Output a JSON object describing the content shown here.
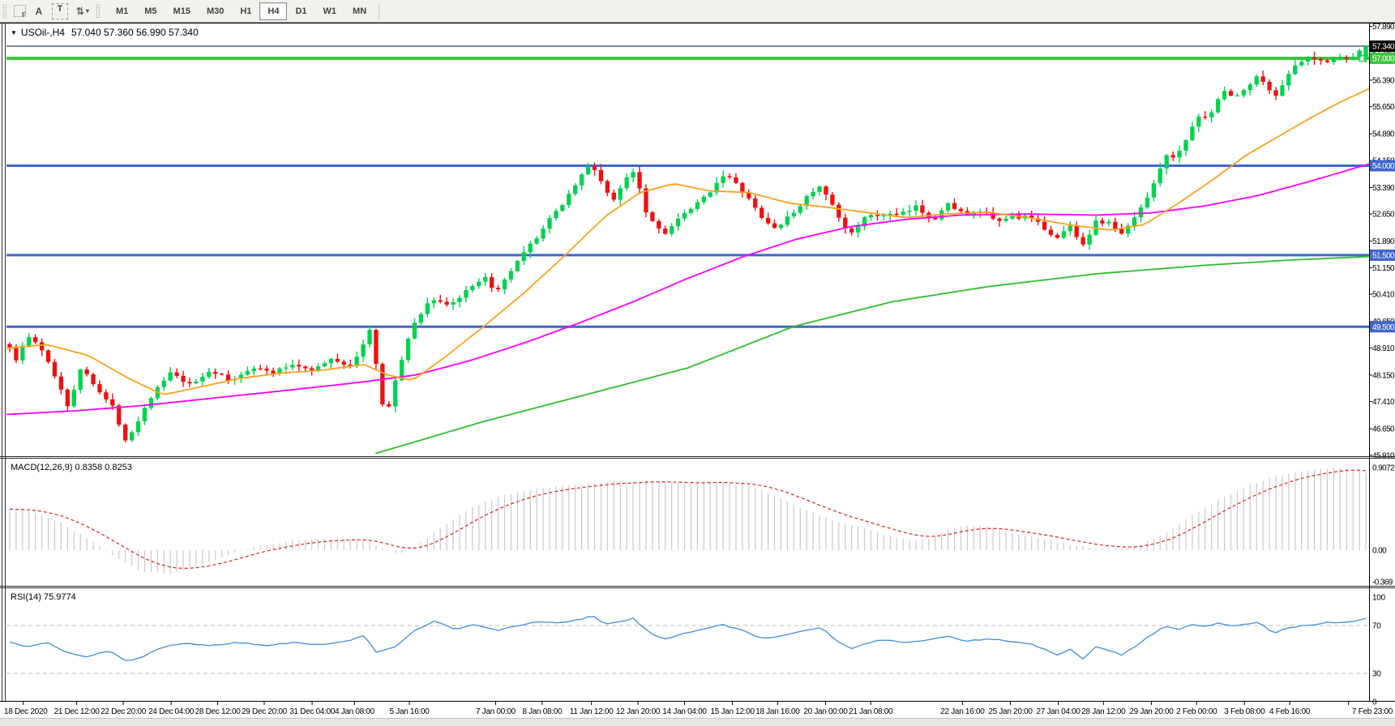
{
  "toolbar": {
    "icons": [
      {
        "name": "grid-f-icon",
        "glyph": "F"
      },
      {
        "name": "font-icon",
        "glyph": "A"
      },
      {
        "name": "text-label-icon",
        "glyph": "T"
      },
      {
        "name": "arrow-tools-icon",
        "glyph": "⇅"
      }
    ],
    "caret_glyph": "▾",
    "timeframes": [
      "M1",
      "M5",
      "M15",
      "M30",
      "H1",
      "H4",
      "D1",
      "W1",
      "MN"
    ],
    "active_timeframe": "H4"
  },
  "chart_header": {
    "window_menu_glyph": "▼",
    "symbol": "USOil-,H4",
    "ohlc": "57.040 57.360 56.990 57.340"
  },
  "indicators": {
    "macd_label": "MACD(12,26,9) 0.8358 0.8253",
    "rsi_label": "RSI(14) 75.9774"
  },
  "colors": {
    "bull": "#00d34f",
    "bear": "#ef1010",
    "ma_fast": "#ffa01e",
    "ma_mid": "#ff00ff",
    "ma_slow": "#2fbe2f",
    "hline_blue": "#4066cc",
    "hline_green": "#3dc53d",
    "last_price_line": "#7e8c99",
    "last_price_box": "#000000",
    "macd_hist": "#c9c9c9",
    "macd_signal": "#e02020",
    "rsi_line": "#3e8ede",
    "rsi_levels": "#bdbdbd",
    "panel_bg": "#ffffff",
    "border": "#3a3a3a"
  },
  "chart_data": {
    "type": "candlestick",
    "symbol": "USOil-",
    "timeframe": "H4",
    "title": "USOil-,H4 57.040 57.360 56.990 57.340",
    "ohlc_current": {
      "open": 57.04,
      "high": 57.36,
      "low": 56.99,
      "close": 57.34
    },
    "price_axis_ticks": [
      "57.890",
      "57.150",
      "56.390",
      "55.650",
      "54.890",
      "54.150",
      "53.390",
      "52.650",
      "51.890",
      "51.150",
      "50.410",
      "49.650",
      "48.910",
      "48.150",
      "47.410",
      "46.650",
      "45.910"
    ],
    "horizontal_lines": [
      {
        "price": 57.34,
        "label": "57.340",
        "style": "last-price"
      },
      {
        "price": 57.0,
        "label": "57.000",
        "style": "green-line"
      },
      {
        "price": 54.0,
        "label": "54.000",
        "style": "blue-line"
      },
      {
        "price": 51.5,
        "label": "51.500",
        "style": "blue-line"
      },
      {
        "price": 49.5,
        "label": "49.500",
        "style": "blue-line"
      }
    ],
    "candle_count": 212,
    "price_anchors": [
      [
        0.0,
        49.3
      ],
      [
        0.006,
        48.45
      ],
      [
        0.015,
        49.25
      ],
      [
        0.022,
        49.05
      ],
      [
        0.03,
        48.55
      ],
      [
        0.038,
        47.95
      ],
      [
        0.045,
        47.3
      ],
      [
        0.055,
        48.35
      ],
      [
        0.062,
        48.05
      ],
      [
        0.07,
        47.6
      ],
      [
        0.078,
        47.25
      ],
      [
        0.088,
        46.3
      ],
      [
        0.096,
        46.85
      ],
      [
        0.106,
        47.55
      ],
      [
        0.12,
        48.2
      ],
      [
        0.135,
        47.85
      ],
      [
        0.15,
        48.3
      ],
      [
        0.165,
        47.95
      ],
      [
        0.18,
        48.4
      ],
      [
        0.195,
        48.2
      ],
      [
        0.21,
        48.45
      ],
      [
        0.225,
        48.3
      ],
      [
        0.24,
        48.6
      ],
      [
        0.252,
        48.4
      ],
      [
        0.26,
        48.75
      ],
      [
        0.265,
        49.6
      ],
      [
        0.27,
        48.9
      ],
      [
        0.274,
        47.4
      ],
      [
        0.279,
        47.1
      ],
      [
        0.288,
        48.35
      ],
      [
        0.299,
        49.6
      ],
      [
        0.312,
        50.3
      ],
      [
        0.325,
        50.1
      ],
      [
        0.34,
        50.55
      ],
      [
        0.352,
        50.85
      ],
      [
        0.36,
        50.45
      ],
      [
        0.374,
        51.25
      ],
      [
        0.392,
        52.15
      ],
      [
        0.41,
        53.05
      ],
      [
        0.424,
        53.85
      ],
      [
        0.429,
        54.05
      ],
      [
        0.437,
        53.55
      ],
      [
        0.445,
        52.95
      ],
      [
        0.455,
        53.7
      ],
      [
        0.461,
        53.9
      ],
      [
        0.47,
        52.65
      ],
      [
        0.482,
        52.1
      ],
      [
        0.495,
        52.55
      ],
      [
        0.512,
        53.1
      ],
      [
        0.527,
        53.8
      ],
      [
        0.542,
        53.2
      ],
      [
        0.556,
        52.45
      ],
      [
        0.565,
        52.25
      ],
      [
        0.578,
        52.7
      ],
      [
        0.59,
        53.25
      ],
      [
        0.598,
        53.4
      ],
      [
        0.61,
        52.6
      ],
      [
        0.618,
        52.05
      ],
      [
        0.628,
        52.5
      ],
      [
        0.642,
        52.65
      ],
      [
        0.655,
        52.6
      ],
      [
        0.668,
        52.85
      ],
      [
        0.68,
        52.5
      ],
      [
        0.692,
        52.95
      ],
      [
        0.705,
        52.6
      ],
      [
        0.716,
        52.75
      ],
      [
        0.726,
        52.4
      ],
      [
        0.738,
        52.6
      ],
      [
        0.75,
        52.55
      ],
      [
        0.762,
        52.25
      ],
      [
        0.772,
        51.95
      ],
      [
        0.78,
        52.35
      ],
      [
        0.79,
        51.8
      ],
      [
        0.8,
        52.45
      ],
      [
        0.81,
        52.4
      ],
      [
        0.818,
        52.05
      ],
      [
        0.828,
        52.55
      ],
      [
        0.838,
        53.2
      ],
      [
        0.85,
        54.25
      ],
      [
        0.86,
        54.3
      ],
      [
        0.872,
        55.25
      ],
      [
        0.884,
        55.5
      ],
      [
        0.894,
        56.1
      ],
      [
        0.902,
        55.9
      ],
      [
        0.912,
        56.25
      ],
      [
        0.92,
        56.55
      ],
      [
        0.93,
        55.85
      ],
      [
        0.94,
        56.55
      ],
      [
        0.95,
        56.9
      ],
      [
        0.958,
        57.0
      ],
      [
        0.966,
        56.9
      ],
      [
        0.976,
        57.05
      ],
      [
        0.986,
        56.95
      ],
      [
        0.996,
        57.3
      ]
    ],
    "ma_fast_anchors": [
      [
        0.0,
        48.9
      ],
      [
        0.03,
        49.0
      ],
      [
        0.06,
        48.7
      ],
      [
        0.09,
        48.05
      ],
      [
        0.115,
        47.6
      ],
      [
        0.14,
        47.8
      ],
      [
        0.17,
        48.05
      ],
      [
        0.2,
        48.2
      ],
      [
        0.235,
        48.3
      ],
      [
        0.262,
        48.45
      ],
      [
        0.28,
        48.15
      ],
      [
        0.298,
        48.0
      ],
      [
        0.32,
        48.6
      ],
      [
        0.35,
        49.5
      ],
      [
        0.38,
        50.45
      ],
      [
        0.41,
        51.5
      ],
      [
        0.44,
        52.6
      ],
      [
        0.465,
        53.25
      ],
      [
        0.49,
        53.5
      ],
      [
        0.515,
        53.3
      ],
      [
        0.545,
        53.25
      ],
      [
        0.575,
        52.95
      ],
      [
        0.6,
        52.85
      ],
      [
        0.63,
        52.7
      ],
      [
        0.66,
        52.55
      ],
      [
        0.69,
        52.65
      ],
      [
        0.72,
        52.7
      ],
      [
        0.75,
        52.55
      ],
      [
        0.78,
        52.35
      ],
      [
        0.81,
        52.2
      ],
      [
        0.835,
        52.35
      ],
      [
        0.86,
        52.95
      ],
      [
        0.885,
        53.6
      ],
      [
        0.91,
        54.3
      ],
      [
        0.935,
        54.85
      ],
      [
        0.96,
        55.4
      ],
      [
        0.98,
        55.8
      ],
      [
        1.0,
        56.15
      ]
    ],
    "ma_mid_anchors": [
      [
        0.0,
        47.05
      ],
      [
        0.05,
        47.15
      ],
      [
        0.1,
        47.3
      ],
      [
        0.15,
        47.5
      ],
      [
        0.2,
        47.7
      ],
      [
        0.26,
        47.95
      ],
      [
        0.3,
        48.15
      ],
      [
        0.34,
        48.55
      ],
      [
        0.38,
        49.05
      ],
      [
        0.42,
        49.6
      ],
      [
        0.46,
        50.2
      ],
      [
        0.5,
        50.85
      ],
      [
        0.54,
        51.45
      ],
      [
        0.58,
        51.95
      ],
      [
        0.62,
        52.3
      ],
      [
        0.66,
        52.5
      ],
      [
        0.7,
        52.62
      ],
      [
        0.75,
        52.65
      ],
      [
        0.8,
        52.62
      ],
      [
        0.84,
        52.68
      ],
      [
        0.88,
        52.88
      ],
      [
        0.92,
        53.18
      ],
      [
        0.96,
        53.6
      ],
      [
        1.0,
        54.05
      ]
    ],
    "ma_slow_anchors": [
      [
        0.27,
        45.95
      ],
      [
        0.35,
        46.85
      ],
      [
        0.42,
        47.55
      ],
      [
        0.5,
        48.35
      ],
      [
        0.577,
        49.5
      ],
      [
        0.65,
        50.2
      ],
      [
        0.72,
        50.62
      ],
      [
        0.8,
        50.98
      ],
      [
        0.88,
        51.22
      ],
      [
        0.94,
        51.36
      ],
      [
        1.0,
        51.46
      ]
    ],
    "macd": {
      "params": "12,26,9",
      "value": 0.8358,
      "signal": 0.8253,
      "axis_ticks": [
        "0.9072",
        "0.00",
        "-0.369"
      ],
      "anchors": [
        [
          0.0,
          0.46
        ],
        [
          0.02,
          0.42
        ],
        [
          0.04,
          0.3
        ],
        [
          0.06,
          0.12
        ],
        [
          0.08,
          -0.08
        ],
        [
          0.1,
          -0.24
        ],
        [
          0.12,
          -0.26
        ],
        [
          0.14,
          -0.17
        ],
        [
          0.16,
          -0.07
        ],
        [
          0.18,
          0.03
        ],
        [
          0.21,
          0.1
        ],
        [
          0.24,
          0.13
        ],
        [
          0.262,
          0.12
        ],
        [
          0.275,
          0.02
        ],
        [
          0.288,
          -0.04
        ],
        [
          0.3,
          0.03
        ],
        [
          0.32,
          0.26
        ],
        [
          0.34,
          0.46
        ],
        [
          0.36,
          0.58
        ],
        [
          0.385,
          0.67
        ],
        [
          0.41,
          0.71
        ],
        [
          0.44,
          0.745
        ],
        [
          0.47,
          0.76
        ],
        [
          0.5,
          0.73
        ],
        [
          0.52,
          0.745
        ],
        [
          0.545,
          0.71
        ],
        [
          0.565,
          0.6
        ],
        [
          0.585,
          0.45
        ],
        [
          0.605,
          0.33
        ],
        [
          0.625,
          0.26
        ],
        [
          0.645,
          0.17
        ],
        [
          0.66,
          0.11
        ],
        [
          0.675,
          0.12
        ],
        [
          0.69,
          0.22
        ],
        [
          0.705,
          0.27
        ],
        [
          0.72,
          0.26
        ],
        [
          0.74,
          0.18
        ],
        [
          0.76,
          0.13
        ],
        [
          0.78,
          0.06
        ],
        [
          0.8,
          0.02
        ],
        [
          0.815,
          0.01
        ],
        [
          0.83,
          0.05
        ],
        [
          0.85,
          0.18
        ],
        [
          0.87,
          0.38
        ],
        [
          0.89,
          0.56
        ],
        [
          0.91,
          0.7
        ],
        [
          0.93,
          0.8
        ],
        [
          0.95,
          0.87
        ],
        [
          0.97,
          0.9
        ],
        [
          0.985,
          0.907
        ],
        [
          1.0,
          0.84
        ]
      ]
    },
    "rsi": {
      "period": 14,
      "value": 75.9774,
      "axis_ticks": [
        "100",
        "70",
        "30",
        "0"
      ],
      "levels": [
        70,
        30
      ],
      "anchors": [
        [
          0.0,
          57
        ],
        [
          0.015,
          52
        ],
        [
          0.03,
          56
        ],
        [
          0.045,
          47
        ],
        [
          0.06,
          44
        ],
        [
          0.075,
          49
        ],
        [
          0.088,
          40
        ],
        [
          0.1,
          44
        ],
        [
          0.115,
          52
        ],
        [
          0.13,
          55
        ],
        [
          0.15,
          53
        ],
        [
          0.17,
          56
        ],
        [
          0.19,
          53
        ],
        [
          0.21,
          56
        ],
        [
          0.23,
          54
        ],
        [
          0.25,
          57
        ],
        [
          0.262,
          62
        ],
        [
          0.272,
          47
        ],
        [
          0.285,
          52
        ],
        [
          0.3,
          66
        ],
        [
          0.315,
          74
        ],
        [
          0.33,
          67
        ],
        [
          0.345,
          71
        ],
        [
          0.36,
          66
        ],
        [
          0.375,
          70
        ],
        [
          0.39,
          73
        ],
        [
          0.405,
          72
        ],
        [
          0.42,
          75
        ],
        [
          0.43,
          78
        ],
        [
          0.44,
          71
        ],
        [
          0.45,
          73
        ],
        [
          0.46,
          76
        ],
        [
          0.472,
          64
        ],
        [
          0.482,
          58
        ],
        [
          0.495,
          63
        ],
        [
          0.51,
          67
        ],
        [
          0.525,
          71
        ],
        [
          0.54,
          66
        ],
        [
          0.555,
          59
        ],
        [
          0.57,
          62
        ],
        [
          0.585,
          66
        ],
        [
          0.598,
          68
        ],
        [
          0.61,
          57
        ],
        [
          0.62,
          51
        ],
        [
          0.632,
          56
        ],
        [
          0.645,
          58
        ],
        [
          0.66,
          56
        ],
        [
          0.675,
          58
        ],
        [
          0.69,
          61
        ],
        [
          0.705,
          57
        ],
        [
          0.72,
          59
        ],
        [
          0.735,
          57
        ],
        [
          0.75,
          55
        ],
        [
          0.762,
          50
        ],
        [
          0.772,
          45
        ],
        [
          0.78,
          51
        ],
        [
          0.79,
          42
        ],
        [
          0.8,
          53
        ],
        [
          0.81,
          49
        ],
        [
          0.818,
          45
        ],
        [
          0.83,
          54
        ],
        [
          0.84,
          62
        ],
        [
          0.85,
          69
        ],
        [
          0.86,
          67
        ],
        [
          0.87,
          71
        ],
        [
          0.88,
          69
        ],
        [
          0.89,
          72
        ],
        [
          0.9,
          70
        ],
        [
          0.91,
          71
        ],
        [
          0.92,
          73
        ],
        [
          0.93,
          63
        ],
        [
          0.94,
          68
        ],
        [
          0.95,
          70
        ],
        [
          0.96,
          71
        ],
        [
          0.97,
          73
        ],
        [
          0.98,
          72
        ],
        [
          0.99,
          74
        ],
        [
          1.0,
          76
        ]
      ]
    },
    "x_labels": [
      {
        "t": "18 Dec 2020",
        "f": 0.017
      },
      {
        "t": "21 Dec 12:00",
        "f": 0.056
      },
      {
        "t": "22 Dec 20:00",
        "f": 0.09
      },
      {
        "t": "24 Dec 04:00",
        "f": 0.125
      },
      {
        "t": "28 Dec 12:00",
        "f": 0.159
      },
      {
        "t": "29 Dec 20:00",
        "f": 0.193
      },
      {
        "t": "31 Dec 04:00",
        "f": 0.228
      },
      {
        "t": "4 Jan 08:00",
        "f": 0.259
      },
      {
        "t": "5 Jan 16:00",
        "f": 0.299
      },
      {
        "t": "7 Jan 00:00",
        "f": 0.362
      },
      {
        "t": "8 Jan 08:00",
        "f": 0.396
      },
      {
        "t": "11 Jan 12:00",
        "f": 0.432
      },
      {
        "t": "12 Jan 20:00",
        "f": 0.466
      },
      {
        "t": "14 Jan 04:00",
        "f": 0.5
      },
      {
        "t": "15 Jan 12:00",
        "f": 0.535
      },
      {
        "t": "18 Jan 16:00",
        "f": 0.568
      },
      {
        "t": "20 Jan 00:00",
        "f": 0.603
      },
      {
        "t": "21 Jan 08:00",
        "f": 0.636
      },
      {
        "t": "22 Jan 16:00",
        "f": 0.703
      },
      {
        "t": "25 Jan 20:00",
        "f": 0.738
      },
      {
        "t": "27 Jan 04:00",
        "f": 0.773
      },
      {
        "t": "28 Jan 12:00",
        "f": 0.806
      },
      {
        "t": "29 Jan 20:00",
        "f": 0.841
      },
      {
        "t": "2 Feb 00:00",
        "f": 0.874
      },
      {
        "t": "3 Feb 08:00",
        "f": 0.909
      },
      {
        "t": "4 Feb 16:00",
        "f": 0.942
      },
      {
        "t": "7 Feb 23:00",
        "f": 0.985
      }
    ]
  }
}
